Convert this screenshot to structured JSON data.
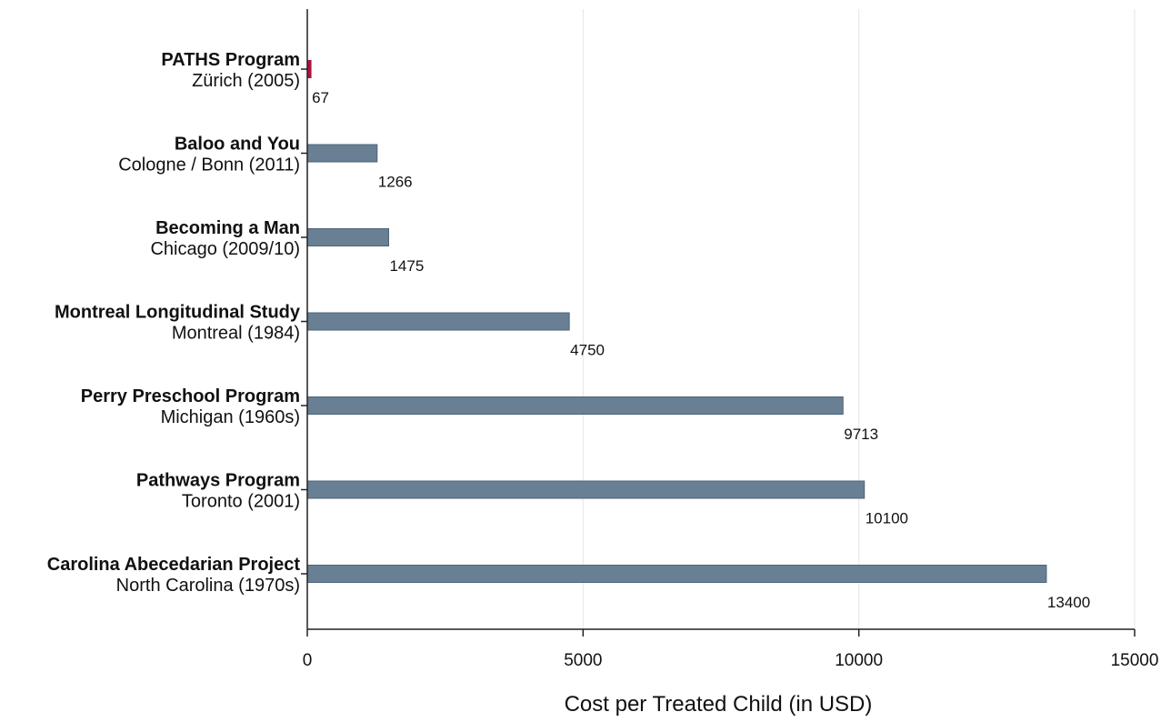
{
  "chart_data": {
    "type": "bar",
    "orientation": "horizontal",
    "categories": [
      {
        "name": "PATHS Program",
        "sub": "Zürich (2005)"
      },
      {
        "name": "Baloo and You",
        "sub": "Cologne / Bonn (2011)"
      },
      {
        "name": "Becoming a Man",
        "sub": "Chicago (2009/10)"
      },
      {
        "name": "Montreal Longitudinal Study",
        "sub": "Montreal (1984)"
      },
      {
        "name": "Perry Preschool Program",
        "sub": "Michigan (1960s)"
      },
      {
        "name": "Pathways Program",
        "sub": "Toronto (2001)"
      },
      {
        "name": "Carolina Abecedarian Project",
        "sub": "North Carolina (1970s)"
      }
    ],
    "values": [
      67,
      1266,
      1475,
      4750,
      9713,
      10100,
      13400
    ],
    "value_labels": [
      "67",
      "1266",
      "1475",
      "4750",
      "9713",
      "10100",
      "13400"
    ],
    "xlabel": "Cost per Treated Child (in USD)",
    "xlim": [
      0,
      15000
    ],
    "xticks": [
      0,
      5000,
      10000,
      15000
    ],
    "xtick_labels": [
      "0",
      "5000",
      "10000",
      "15000"
    ],
    "grid": true,
    "colors": {
      "bar": "#687f94",
      "bar_edge": "#4e6579",
      "highlight": "#b0123f",
      "grid": "#e6e6e6",
      "axis": "#222222"
    },
    "highlight_index": 0
  }
}
